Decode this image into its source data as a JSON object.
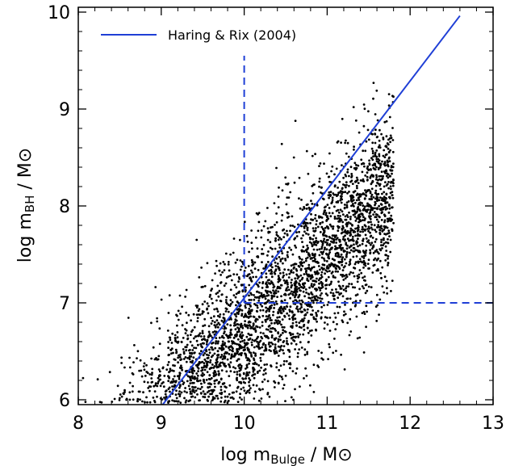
{
  "chart_data": {
    "type": "scatter",
    "x_axis": {
      "min": 8,
      "max": 13,
      "ticks": [
        8,
        9,
        10,
        11,
        12,
        13
      ],
      "label": "log m",
      "label_sub": "Bulge",
      "label_unit": " / M⊙"
    },
    "y_axis": {
      "min": 5.95,
      "max": 10.05,
      "ticks": [
        6,
        7,
        8,
        9,
        10
      ],
      "label": "log m",
      "label_sub": "BH",
      "label_unit": "  / M⊙"
    },
    "legend": {
      "position": "top-left",
      "entries": [
        {
          "label": "Haring & Rix (2004)",
          "color": "#1f3fd6",
          "style": "solid"
        }
      ]
    },
    "series": [
      {
        "name": "Haring & Rix (2004)",
        "type": "line",
        "color": "#1f3fd6",
        "slope": 1.12,
        "intercept_at_x10": 7.05,
        "x": [
          9.0,
          12.6
        ]
      },
      {
        "type": "dashed-line",
        "color": "#1f3fd6",
        "x": [
          10.0,
          10.0
        ],
        "y": [
          7.0,
          9.55
        ]
      },
      {
        "type": "dashed-line",
        "color": "#1f3fd6",
        "x": [
          10.0,
          13.0
        ],
        "y": [
          7.0,
          7.0
        ]
      },
      {
        "type": "scatter-cloud",
        "color": "#000000",
        "n_points": 3300,
        "x_range": [
          8.05,
          11.8
        ],
        "y_floor": 5.97,
        "relation": {
          "slope": 0.85,
          "value_at_x10": 6.65,
          "scatter": 0.45
        }
      }
    ]
  }
}
